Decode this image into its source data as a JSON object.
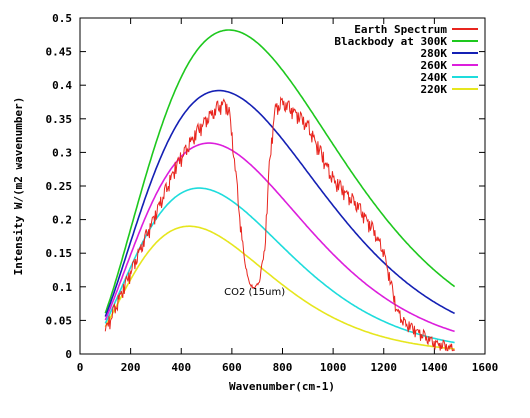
{
  "chart_data": {
    "type": "line",
    "xlabel": "Wavenumber(cm-1)",
    "ylabel": "Intensity W/(m2 wavenumber)",
    "xlim": [
      0,
      1600
    ],
    "ylim": [
      0,
      0.5
    ],
    "x_ticks": [
      0,
      200,
      400,
      600,
      800,
      1000,
      1200,
      1400,
      1600
    ],
    "y_ticks": [
      0,
      0.05,
      0.1,
      0.15,
      0.2,
      0.25,
      0.3,
      0.35,
      0.4,
      0.45,
      0.5
    ],
    "x_tick_labels": [
      "0",
      "200",
      "400",
      "600",
      "800",
      "1000",
      "1200",
      "1400",
      "1600"
    ],
    "y_tick_labels": [
      "0",
      "0.05",
      "0.1",
      "0.15",
      "0.2",
      "0.25",
      "0.3",
      "0.35",
      "0.4",
      "0.45",
      "0.5"
    ],
    "legend_position": "top-right",
    "annotation": "CO2 (15um)",
    "annotation_at": [
      690,
      0.088
    ],
    "series": [
      {
        "name": "Earth Spectrum",
        "color": "#e8251e",
        "x": [
          100,
          140,
          180,
          220,
          260,
          300,
          340,
          380,
          420,
          460,
          500,
          540,
          570,
          590,
          610,
          630,
          650,
          670,
          690,
          710,
          730,
          750,
          770,
          800,
          850,
          900,
          950,
          1000,
          1050,
          1100,
          1150,
          1200,
          1230,
          1250,
          1280,
          1320,
          1360,
          1400,
          1440,
          1480
        ],
        "y": [
          0.045,
          0.08,
          0.115,
          0.15,
          0.185,
          0.22,
          0.255,
          0.29,
          0.315,
          0.34,
          0.36,
          0.375,
          0.385,
          0.37,
          0.3,
          0.22,
          0.14,
          0.105,
          0.1,
          0.11,
          0.17,
          0.3,
          0.375,
          0.385,
          0.37,
          0.35,
          0.31,
          0.27,
          0.25,
          0.23,
          0.2,
          0.16,
          0.11,
          0.075,
          0.055,
          0.045,
          0.035,
          0.025,
          0.02,
          0.015
        ]
      },
      {
        "name": "Blackbody at 300K",
        "color": "#1ec81e",
        "temperature_k": 300
      },
      {
        "name": "280K",
        "color": "#1420b4",
        "temperature_k": 280
      },
      {
        "name": "260K",
        "color": "#dc1edc",
        "temperature_k": 260
      },
      {
        "name": "240K",
        "color": "#1edcdc",
        "temperature_k": 240
      },
      {
        "name": "220K",
        "color": "#e6e61e",
        "temperature_k": 220
      }
    ]
  }
}
